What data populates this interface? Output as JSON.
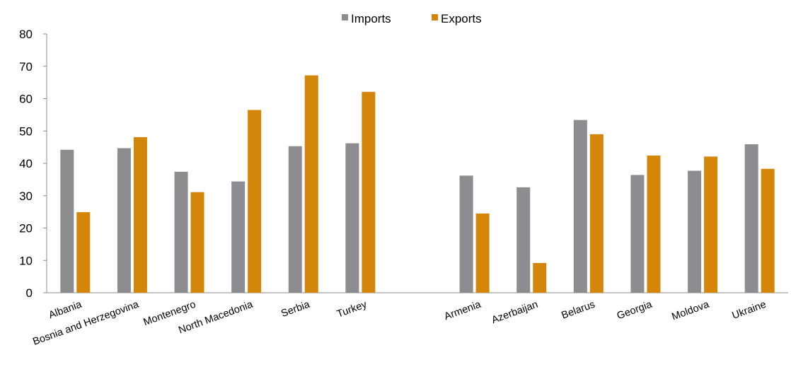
{
  "chart_data": {
    "type": "bar",
    "categories": [
      "Albania",
      "Bosnia and Herzegovina",
      "Montenegro",
      "North Macedonia",
      "Serbia",
      "Turkey",
      "",
      "Armenia",
      "Azerbaijan",
      "Belarus",
      "Georgia",
      "Moldova",
      "Ukraine"
    ],
    "series": [
      {
        "name": "Imports",
        "color": "#8c8c91",
        "values": [
          44.2,
          44.7,
          37.4,
          34.4,
          45.3,
          46.2,
          null,
          36.2,
          32.6,
          53.4,
          36.4,
          37.7,
          45.9
        ]
      },
      {
        "name": "Exports",
        "color": "#d4860a",
        "values": [
          24.9,
          48.1,
          31.1,
          56.5,
          67.2,
          62.1,
          null,
          24.5,
          9.2,
          49.0,
          42.4,
          42.1,
          38.3
        ]
      }
    ],
    "y_ticks": [
      "0",
      "10",
      "20",
      "30",
      "40",
      "50",
      "60",
      "70",
      "80"
    ],
    "ylim": [
      0,
      80
    ],
    "title": "",
    "xlabel": "",
    "ylabel": "",
    "legend_position": "top-center",
    "grid": false
  }
}
